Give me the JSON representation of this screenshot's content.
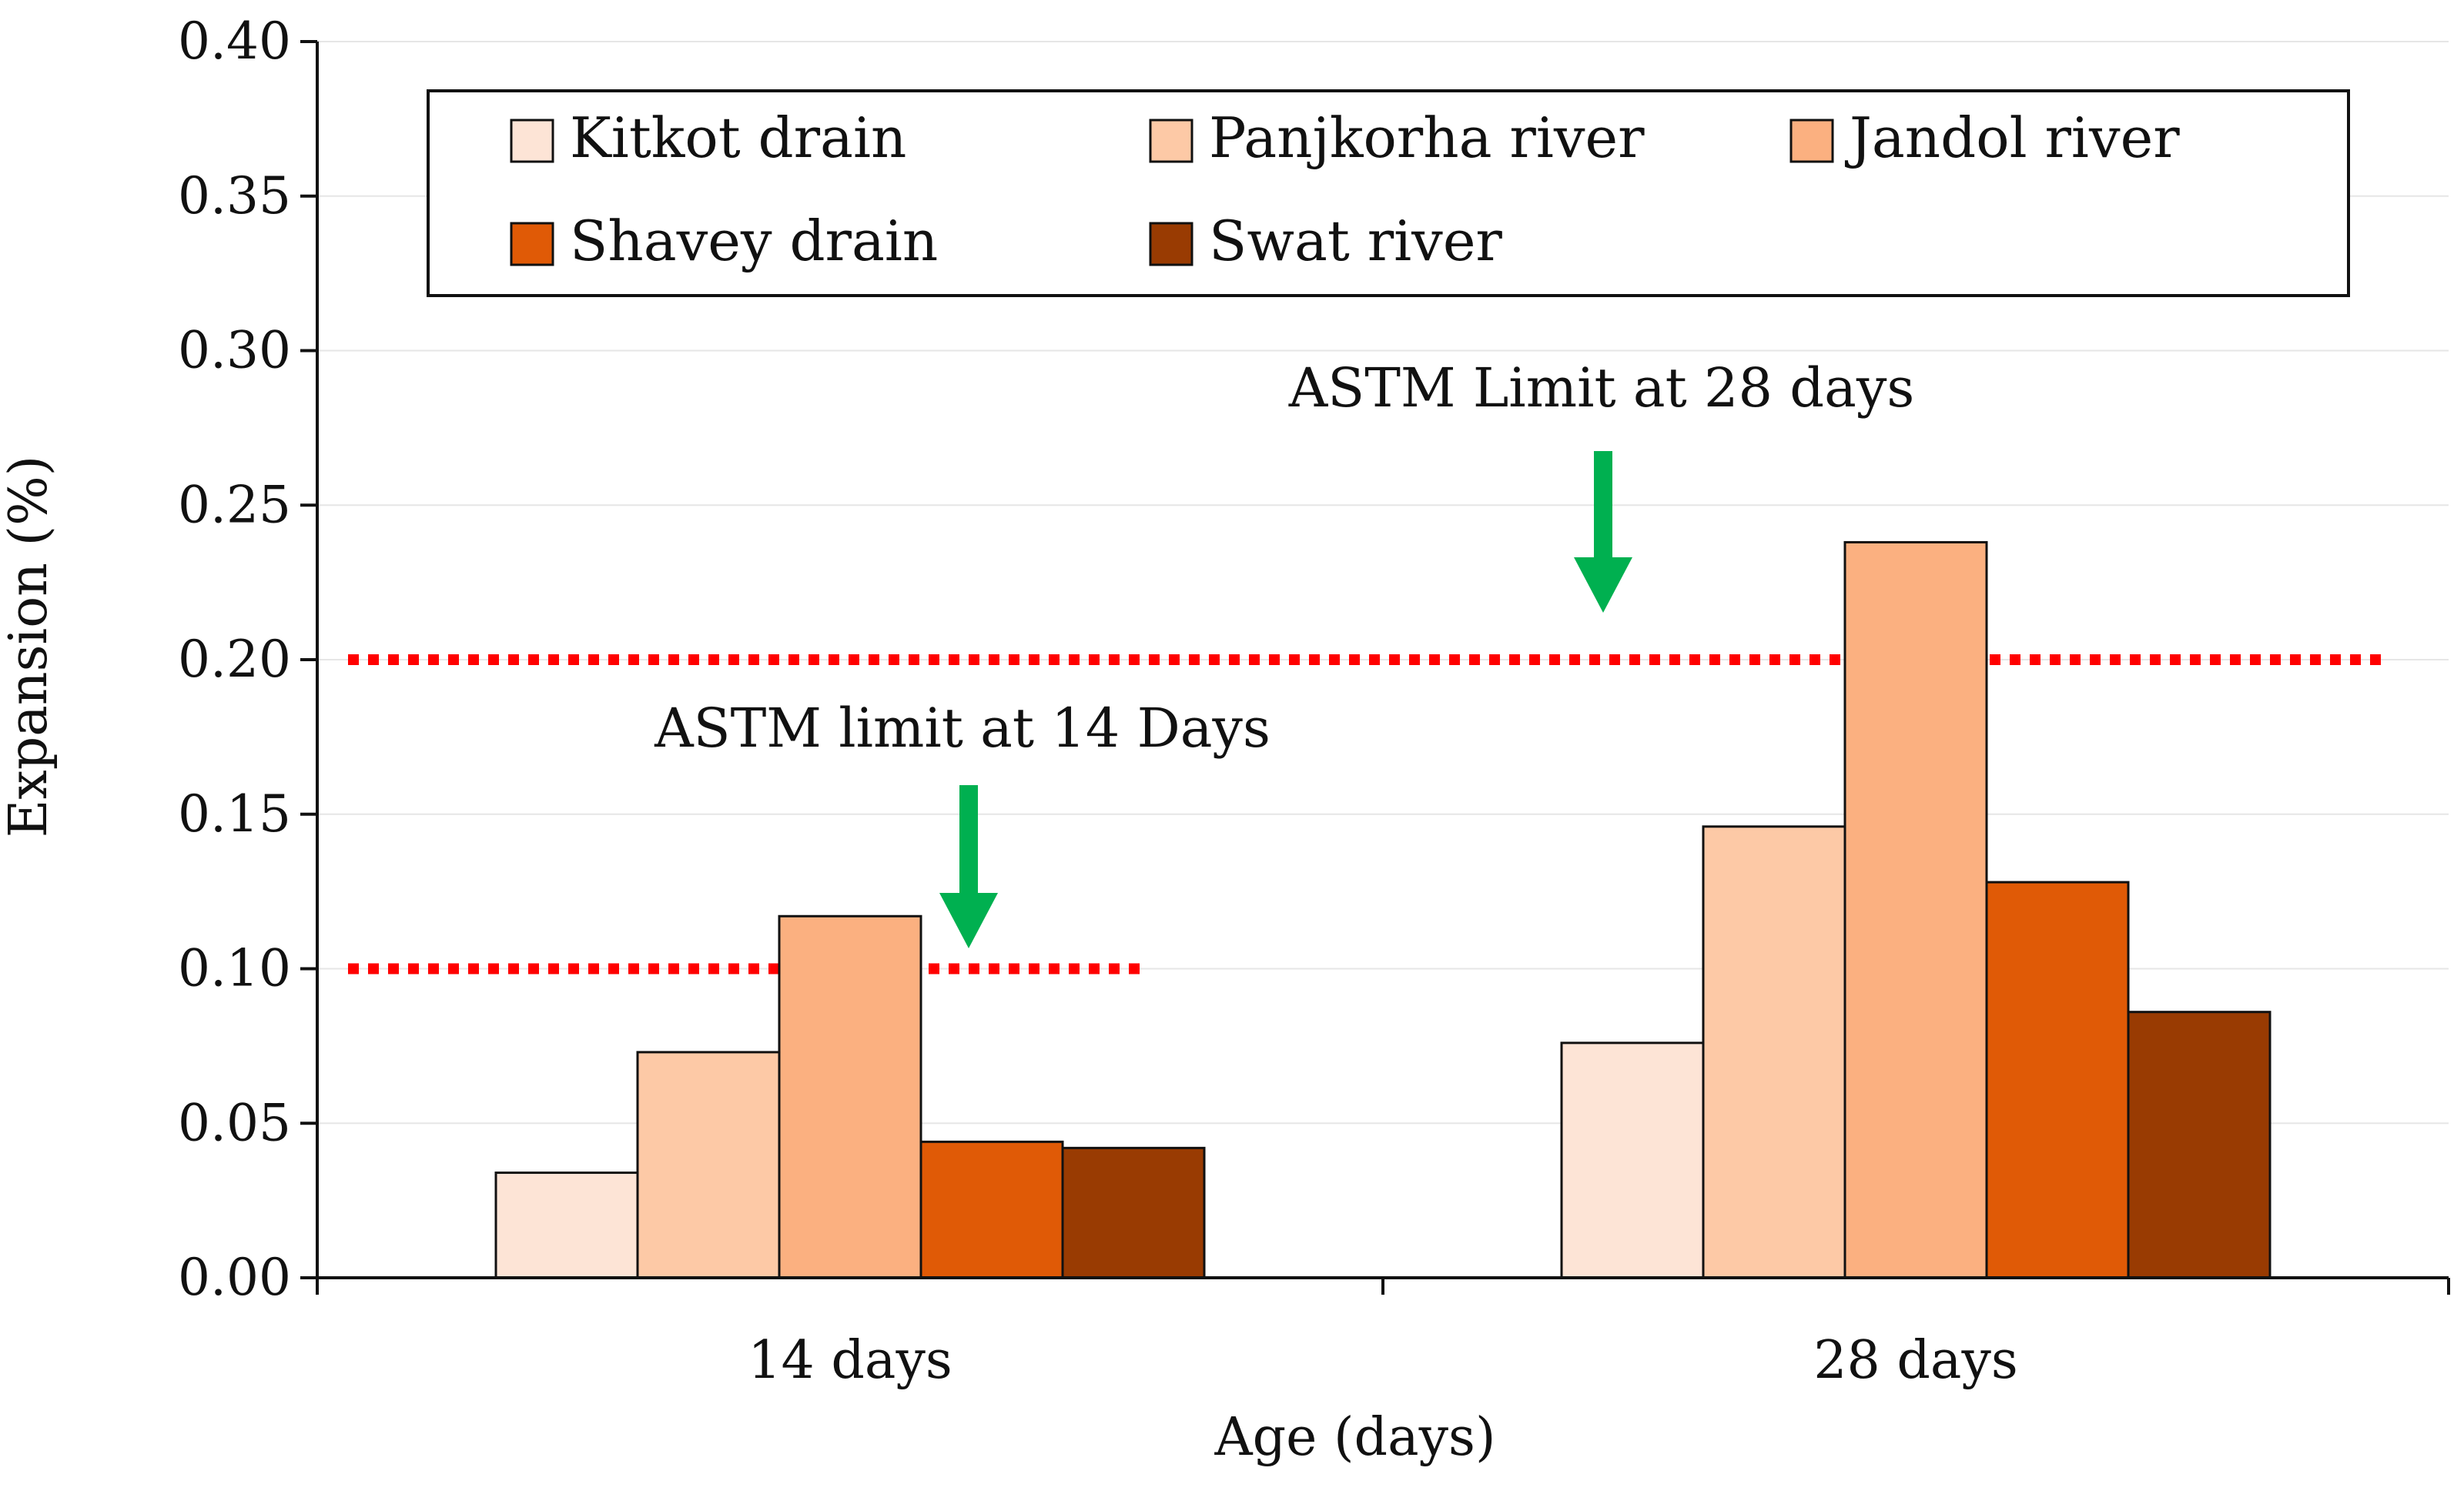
{
  "chart_data": {
    "type": "bar",
    "title": "",
    "xlabel": "Age (days)",
    "ylabel": "Expansion (%)",
    "ylim": [
      0,
      0.4
    ],
    "yticks": [
      "0.00",
      "0.05",
      "0.10",
      "0.15",
      "0.20",
      "0.25",
      "0.30",
      "0.35",
      "0.40"
    ],
    "categories": [
      "14 days",
      "28 days"
    ],
    "grid": true,
    "legend_position": "top",
    "series": [
      {
        "name": "Kitkot drain",
        "color": "#fde4d6",
        "values": [
          0.034,
          0.076
        ]
      },
      {
        "name": "Panjkorha river",
        "color": "#fdc9a6",
        "values": [
          0.073,
          0.146
        ]
      },
      {
        "name": "Jandol river",
        "color": "#fbb080",
        "values": [
          0.117,
          0.238
        ]
      },
      {
        "name": "Shavey drain",
        "color": "#e05a06",
        "values": [
          0.044,
          0.128
        ]
      },
      {
        "name": "Swat river",
        "color": "#993b02",
        "values": [
          0.042,
          0.086
        ]
      }
    ],
    "limit_lines": [
      {
        "value": 0.1,
        "category": "14 days",
        "color": "#ff0000"
      },
      {
        "value": 0.2,
        "category": "both",
        "color": "#ff0000"
      }
    ],
    "annotations": [
      {
        "text": "ASTM limit at 14 Days",
        "arrow_color": "#00b050",
        "target_value": 0.1
      },
      {
        "text": "ASTM Limit at 28 days",
        "arrow_color": "#00b050",
        "target_value": 0.2
      }
    ]
  }
}
